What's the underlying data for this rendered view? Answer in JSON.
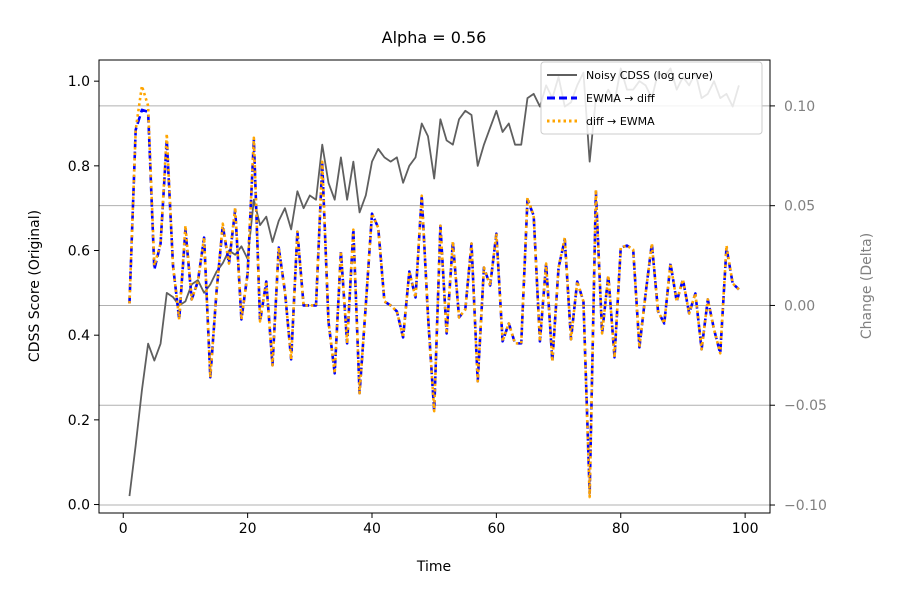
{
  "chart_data": {
    "type": "line",
    "title": "Alpha = 0.56",
    "xlabel": "Time",
    "ylabel_left": "CDSS Score (Original)",
    "ylabel_right": "Change (Delta)",
    "xlim": [
      -3.9,
      104
    ],
    "ylim_left": [
      -0.02,
      1.05
    ],
    "ylim_right": [
      -0.104,
      0.123
    ],
    "x_ticks": [
      0,
      20,
      40,
      60,
      80,
      100
    ],
    "y_ticks_left": [
      0.0,
      0.2,
      0.4,
      0.6,
      0.8,
      1.0
    ],
    "y_ticks_right": [
      -0.1,
      -0.05,
      0.0,
      0.05,
      0.1
    ],
    "y_tick_labels_right": [
      "−0.10",
      "−0.05",
      "0.00",
      "0.05",
      "0.10"
    ],
    "grid": "horizontal lines at right-axis ticks",
    "legend_position": "top-right",
    "colors": {
      "original": "#5f5f5f",
      "ewma_then_diff": "#0000ff",
      "diff_then_ewma": "#ffa500",
      "right_axis": "#808080"
    },
    "series": [
      {
        "name": "Noisy CDSS (log curve)",
        "axis": "left",
        "style": "solid",
        "x": [
          1,
          2,
          3,
          4,
          5,
          6,
          7,
          8,
          9,
          10,
          11,
          12,
          13,
          14,
          15,
          16,
          17,
          18,
          19,
          20,
          21,
          22,
          23,
          24,
          25,
          26,
          27,
          28,
          29,
          30,
          31,
          32,
          33,
          34,
          35,
          36,
          37,
          38,
          39,
          40,
          41,
          42,
          43,
          44,
          45,
          46,
          47,
          48,
          49,
          50,
          51,
          52,
          53,
          54,
          55,
          56,
          57,
          58,
          59,
          60,
          61,
          62,
          63,
          64,
          65,
          66,
          67,
          68,
          69,
          70,
          71,
          72,
          73,
          74,
          75,
          76,
          77,
          78,
          79,
          80,
          81,
          82,
          83,
          84,
          85,
          86,
          87,
          88,
          89,
          90,
          91,
          92,
          93,
          94,
          95,
          96,
          97,
          98,
          99
        ],
        "values": [
          0.02,
          0.14,
          0.27,
          0.38,
          0.34,
          0.38,
          0.5,
          0.49,
          0.47,
          0.48,
          0.52,
          0.53,
          0.5,
          0.52,
          0.55,
          0.57,
          0.6,
          0.59,
          0.61,
          0.58,
          0.72,
          0.66,
          0.68,
          0.62,
          0.67,
          0.7,
          0.65,
          0.74,
          0.7,
          0.73,
          0.72,
          0.85,
          0.76,
          0.72,
          0.82,
          0.72,
          0.81,
          0.69,
          0.73,
          0.81,
          0.84,
          0.82,
          0.81,
          0.82,
          0.76,
          0.8,
          0.82,
          0.9,
          0.87,
          0.77,
          0.91,
          0.86,
          0.85,
          0.91,
          0.93,
          0.92,
          0.8,
          0.85,
          0.89,
          0.93,
          0.88,
          0.9,
          0.85,
          0.85,
          0.96,
          0.97,
          0.94,
          0.99,
          0.96,
          1.01,
          0.94,
          0.95,
          0.99,
          1.02,
          0.81,
          0.96,
          0.95,
          0.98,
          0.95,
          1.03,
          0.98,
          0.98,
          1.0,
          0.99,
          0.96,
          1.02,
          1.01,
          1.03,
          0.98,
          1.01,
          0.99,
          1.02,
          0.96,
          0.97,
          1.0,
          0.96,
          0.97,
          0.94,
          0.99
        ]
      },
      {
        "name": "EWMA → diff",
        "axis": "right",
        "style": "dashed",
        "x": [
          1,
          2,
          3,
          4,
          5,
          6,
          7,
          8,
          9,
          10,
          11,
          12,
          13,
          14,
          15,
          16,
          17,
          18,
          19,
          20,
          21,
          22,
          23,
          24,
          25,
          26,
          27,
          28,
          29,
          30,
          31,
          32,
          33,
          34,
          35,
          36,
          37,
          38,
          39,
          40,
          41,
          42,
          43,
          44,
          45,
          46,
          47,
          48,
          49,
          50,
          51,
          52,
          53,
          54,
          55,
          56,
          57,
          58,
          59,
          60,
          61,
          62,
          63,
          64,
          65,
          66,
          67,
          68,
          69,
          70,
          71,
          72,
          73,
          74,
          75,
          76,
          77,
          78,
          79,
          80,
          81,
          82,
          83,
          84,
          85,
          86,
          87,
          88,
          89,
          90,
          91,
          92,
          93,
          94,
          95,
          96,
          97,
          98,
          99
        ],
        "values": [
          0.001,
          0.088,
          0.098,
          0.097,
          0.018,
          0.031,
          0.083,
          0.02,
          -0.007,
          0.038,
          0.003,
          0.012,
          0.034,
          -0.036,
          0.007,
          0.04,
          0.021,
          0.048,
          -0.007,
          0.016,
          0.083,
          -0.008,
          0.012,
          -0.03,
          0.029,
          0.007,
          -0.027,
          0.037,
          0.0,
          0.0,
          0.0,
          0.071,
          -0.008,
          -0.034,
          0.027,
          -0.019,
          0.038,
          -0.044,
          0.0,
          0.046,
          0.039,
          0.002,
          0.0,
          -0.003,
          -0.016,
          0.017,
          0.004,
          0.055,
          -0.005,
          -0.053,
          0.04,
          -0.014,
          0.032,
          -0.006,
          -0.002,
          0.031,
          -0.038,
          0.019,
          0.01,
          0.036,
          -0.018,
          -0.009,
          -0.019,
          -0.019,
          0.053,
          0.045,
          -0.018,
          0.021,
          -0.028,
          0.019,
          0.033,
          -0.017,
          0.012,
          0.002,
          -0.094,
          0.057,
          -0.014,
          0.015,
          -0.026,
          0.029,
          0.03,
          0.028,
          -0.021,
          0.006,
          0.031,
          -0.003,
          -0.009,
          0.021,
          0.002,
          0.013,
          -0.004,
          0.006,
          -0.022,
          0.003,
          -0.012,
          -0.024,
          0.029,
          0.011,
          0.008
        ]
      },
      {
        "name": "diff → EWMA",
        "axis": "right",
        "style": "dotted",
        "x": [
          1,
          2,
          3,
          4,
          5,
          6,
          7,
          8,
          9,
          10,
          11,
          12,
          13,
          14,
          15,
          16,
          17,
          18,
          19,
          20,
          21,
          22,
          23,
          24,
          25,
          26,
          27,
          28,
          29,
          30,
          31,
          32,
          33,
          34,
          35,
          36,
          37,
          38,
          39,
          40,
          41,
          42,
          43,
          44,
          45,
          46,
          47,
          48,
          49,
          50,
          51,
          52,
          53,
          54,
          55,
          56,
          57,
          58,
          59,
          60,
          61,
          62,
          63,
          64,
          65,
          66,
          67,
          68,
          69,
          70,
          71,
          72,
          73,
          74,
          75,
          76,
          77,
          78,
          79,
          80,
          81,
          82,
          83,
          84,
          85,
          86,
          87,
          88,
          89,
          90,
          91,
          92,
          93,
          94,
          95,
          96,
          97,
          98,
          99
        ],
        "values": [
          0.001,
          0.088,
          0.11,
          0.1,
          0.02,
          0.031,
          0.086,
          0.02,
          -0.007,
          0.04,
          0.003,
          0.012,
          0.034,
          -0.036,
          0.007,
          0.041,
          0.021,
          0.049,
          -0.007,
          0.016,
          0.084,
          -0.008,
          0.012,
          -0.03,
          0.029,
          0.007,
          -0.027,
          0.037,
          0.0,
          0.0,
          0.0,
          0.072,
          -0.008,
          -0.034,
          0.027,
          -0.019,
          0.038,
          -0.044,
          0.0,
          0.046,
          0.039,
          0.002,
          0.0,
          -0.003,
          -0.016,
          0.017,
          0.004,
          0.055,
          -0.005,
          -0.053,
          0.04,
          -0.014,
          0.032,
          -0.006,
          -0.002,
          0.031,
          -0.038,
          0.019,
          0.01,
          0.036,
          -0.018,
          -0.009,
          -0.019,
          -0.019,
          0.054,
          0.045,
          -0.018,
          0.021,
          -0.028,
          0.019,
          0.034,
          -0.017,
          0.012,
          0.002,
          -0.096,
          0.058,
          -0.014,
          0.015,
          -0.026,
          0.029,
          0.03,
          0.028,
          -0.021,
          0.006,
          0.031,
          -0.003,
          -0.009,
          0.021,
          0.002,
          0.013,
          -0.004,
          0.006,
          -0.022,
          0.003,
          -0.012,
          -0.024,
          0.03,
          0.011,
          0.008
        ]
      }
    ]
  }
}
